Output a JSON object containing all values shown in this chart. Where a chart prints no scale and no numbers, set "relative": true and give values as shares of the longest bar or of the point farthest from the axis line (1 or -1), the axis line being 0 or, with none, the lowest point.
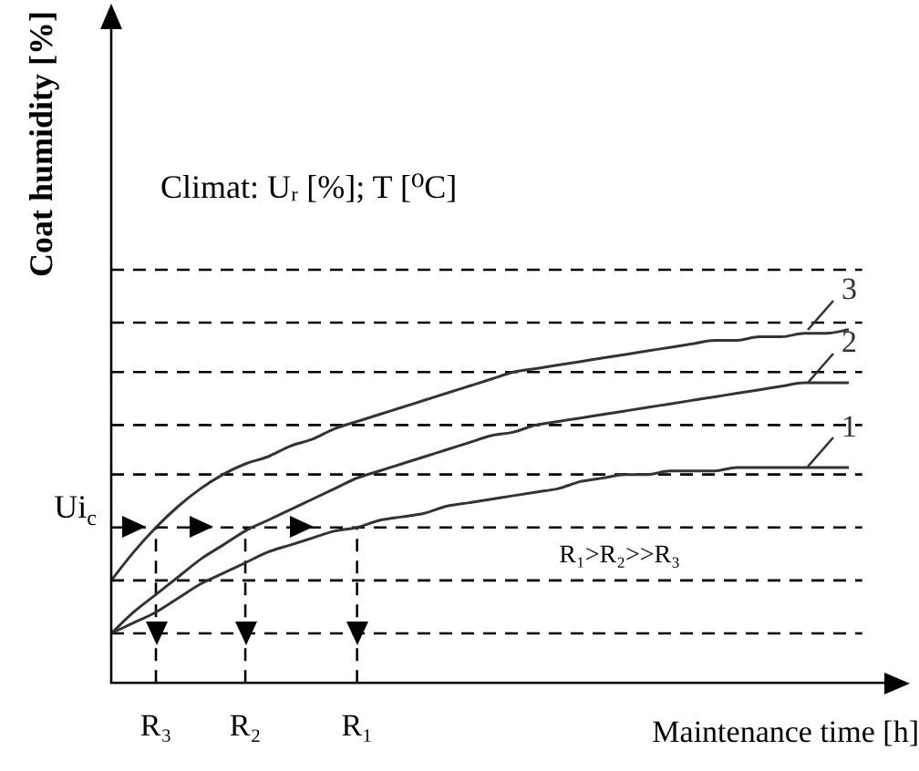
{
  "chart_data": {
    "type": "line",
    "relative": true,
    "xlabel": "Maintenance time [h]",
    "ylabel": "Coat humidity [%]",
    "categories": [
      null,
      null,
      "R₃",
      null,
      null,
      null,
      "R₂",
      null,
      null,
      null,
      null,
      "R₁",
      null,
      null,
      null,
      null,
      null,
      null,
      null,
      null,
      null,
      null,
      null,
      null,
      null,
      null,
      null,
      null,
      null,
      null,
      null,
      null,
      null,
      null,
      null,
      null
    ],
    "grid": false,
    "legend": "right",
    "marker": "none",
    "line_style": "solid",
    "series": [
      {
        "name": "1",
        "color": "#333333",
        "values": [
          0.14,
          0.17,
          0.2,
          0.24,
          0.28,
          0.31,
          0.34,
          0.37,
          0.39,
          0.41,
          0.43,
          0.44,
          0.46,
          0.47,
          0.48,
          0.5,
          0.51,
          0.52,
          0.53,
          0.54,
          0.55,
          0.57,
          0.58,
          0.59,
          0.59,
          0.6,
          0.6,
          0.6,
          0.61,
          0.61,
          0.61,
          0.61,
          0.61,
          0.61,
          null,
          null
        ]
      },
      {
        "name": "2",
        "color": "#333333",
        "values": [
          0.14,
          0.2,
          0.25,
          0.3,
          0.35,
          0.39,
          0.43,
          0.46,
          0.49,
          0.52,
          0.55,
          0.58,
          0.6,
          0.62,
          0.64,
          0.66,
          0.68,
          0.7,
          0.71,
          0.73,
          0.74,
          0.75,
          0.76,
          0.77,
          0.78,
          0.79,
          0.8,
          0.81,
          0.82,
          0.83,
          0.84,
          0.85,
          0.85,
          0.85,
          null,
          null
        ]
      },
      {
        "name": "3",
        "color": "#333333",
        "values": [
          0.29,
          0.37,
          0.44,
          0.5,
          0.55,
          0.59,
          0.62,
          0.64,
          0.67,
          0.69,
          0.72,
          0.74,
          0.76,
          0.78,
          0.8,
          0.82,
          0.84,
          0.86,
          0.88,
          0.89,
          0.9,
          0.91,
          0.92,
          0.93,
          0.94,
          0.95,
          0.96,
          0.97,
          0.97,
          0.98,
          0.98,
          0.99,
          0.99,
          1,
          null,
          null
        ]
      }
    ],
    "ref_lines": [
      {
        "axis": "y",
        "value": 1.17,
        "line_style": "dashed",
        "color": "#000000"
      },
      {
        "axis": "y",
        "value": 1.02,
        "line_style": "dashed",
        "color": "#000000"
      },
      {
        "axis": "y",
        "value": 0.88,
        "line_style": "dashed",
        "color": "#000000"
      },
      {
        "axis": "y",
        "value": 0.73,
        "line_style": "dashed",
        "color": "#000000"
      },
      {
        "axis": "y",
        "value": 0.59,
        "line_style": "dashed",
        "color": "#000000"
      },
      {
        "axis": "y",
        "value": 0.44,
        "label": "Ui$_{c}$",
        "line_style": "dashed",
        "color": "#000000"
      },
      {
        "axis": "y",
        "value": 0.29,
        "line_style": "dashed",
        "color": "#000000"
      },
      {
        "axis": "y",
        "value": 0.14,
        "line_style": "dashed",
        "color": "#000000"
      },
      {
        "axis": "x",
        "value": "R₃",
        "line_style": "dashed",
        "color": "#000000"
      },
      {
        "axis": "x",
        "value": "R₂",
        "line_style": "dashed",
        "color": "#000000"
      },
      {
        "axis": "x",
        "value": "R₁",
        "line_style": "dashed",
        "color": "#000000"
      }
    ],
    "annotations": [
      "Climat: Uᵣ [%]; T [⁰C]",
      "R₁>R₂>>R₃"
    ]
  }
}
